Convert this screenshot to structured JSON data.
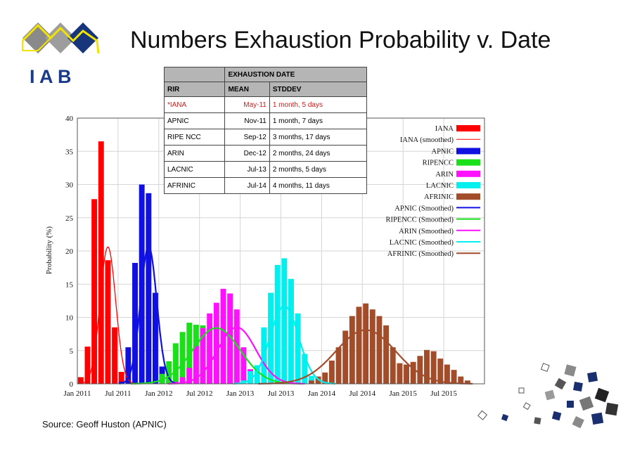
{
  "slide": {
    "title": "Numbers Exhaustion Probability v. Date",
    "logo_text": "I A B",
    "source": "Source: Geoff Huston (APNIC)"
  },
  "table": {
    "group_header": "EXHAUSTION DATE",
    "columns": [
      "RIR",
      "MEAN",
      "STDDEV"
    ],
    "rows": [
      {
        "rir": "*IANA",
        "mean": "May-11",
        "stddev": "1 month, 5 days"
      },
      {
        "rir": "APNIC",
        "mean": "Nov-11",
        "stddev": "1 month, 7 days"
      },
      {
        "rir": "RIPE NCC",
        "mean": "Sep-12",
        "stddev": "3 months, 17 days"
      },
      {
        "rir": "ARIN",
        "mean": "Dec-12",
        "stddev": "2 months, 24 days"
      },
      {
        "rir": "LACNIC",
        "mean": "Jul-13",
        "stddev": "2 months, 5 days"
      },
      {
        "rir": "AFRINIC",
        "mean": "Jul-14",
        "stddev": "4 months, 11 days"
      }
    ],
    "highlight_color": "#d21a1a"
  },
  "chart_data": {
    "type": "bar",
    "ylabel": "Probability (%)",
    "xlabel": "",
    "ylim": [
      0,
      40
    ],
    "yticks": [
      0,
      5,
      10,
      15,
      20,
      25,
      30,
      35,
      40
    ],
    "xlim": [
      "2011-01",
      "2016-01"
    ],
    "xticks": [
      "Jan 2011",
      "Jul 2011",
      "Jan 2012",
      "Jul 2012",
      "Jan 2013",
      "Jul 2013",
      "Jan 2014",
      "Jul 2014",
      "Jan 2015",
      "Jul 2015"
    ],
    "grid": true,
    "legend_position": "top-right",
    "bar_series": [
      {
        "name": "IANA",
        "color": "#ff0000",
        "start": "2011-01",
        "values": [
          1.0,
          5.6,
          27.8,
          36.5,
          18.6,
          8.5,
          1.8
        ]
      },
      {
        "name": "APNIC",
        "color": "#1010e0",
        "start": "2011-07",
        "values": [
          0.3,
          5.5,
          18.2,
          30.0,
          28.7,
          13.7,
          2.6,
          0.5
        ]
      },
      {
        "name": "RIPENCC",
        "color": "#19e019",
        "start": "2012-01",
        "values": [
          1.5,
          3.4,
          6.1,
          7.8,
          9.2,
          8.9,
          8.8,
          8.5,
          8.4,
          7.3,
          5.2,
          3.4,
          2.3,
          1.1
        ]
      },
      {
        "name": "ARIN",
        "color": "#ff10ff",
        "start": "2012-03",
        "values": [
          0.3,
          1.0,
          2.4,
          5.7,
          8.4,
          10.6,
          12.2,
          14.3,
          13.6,
          11.2,
          5.5,
          2.2,
          0.6
        ]
      },
      {
        "name": "LACNIC",
        "color": "#00f0f0",
        "start": "2013-01",
        "values": [
          0.5,
          1.9,
          2.8,
          8.5,
          13.7,
          17.9,
          18.9,
          15.8,
          10.6,
          4.5,
          1.2
        ]
      },
      {
        "name": "AFRINIC",
        "color": "#a34c2a",
        "start": "2013-11",
        "values": [
          0.5,
          1.1,
          1.7,
          3.5,
          5.5,
          8.0,
          10.2,
          11.6,
          12.1,
          11.2,
          10.2,
          8.8,
          5.5,
          3.1,
          2.9,
          3.3,
          4.2,
          5.1,
          4.9,
          3.8,
          2.9,
          2.1,
          1.1,
          0.5
        ]
      }
    ],
    "smoothed_series": [
      {
        "name": "IANA (smoothed)",
        "color": "#ff0000",
        "center": "2011-05",
        "peak": 20.6,
        "sigma_months": 1.15
      },
      {
        "name": "APNIC (Smoothed)",
        "color": "#1010e0",
        "center": "2011-11",
        "peak": 20.7,
        "sigma_months": 1.2
      },
      {
        "name": "RIPENCC (Smoothed)",
        "color": "#19e019",
        "center": "2012-09",
        "peak": 8.4,
        "sigma_months": 3.5
      },
      {
        "name": "ARIN (Smoothed)",
        "color": "#ff10ff",
        "center": "2012-12",
        "peak": 8.5,
        "sigma_months": 2.8
      },
      {
        "name": "LACNIC (Smoothed)",
        "color": "#00f0f0",
        "center": "2013-07",
        "peak": 11.7,
        "sigma_months": 2.1
      },
      {
        "name": "AFRINIC (Smoothed)",
        "color": "#a34c2a",
        "center": "2014-07",
        "peak": 8.1,
        "sigma_months": 4.4
      }
    ],
    "legend": [
      {
        "label": "IANA",
        "kind": "bar",
        "color": "#ff0000"
      },
      {
        "label": "IANA (smoothed)",
        "kind": "thin",
        "color": "#ff0000"
      },
      {
        "label": "APNIC",
        "kind": "bar",
        "color": "#1010e0"
      },
      {
        "label": "RIPENCC",
        "kind": "bar",
        "color": "#19e019"
      },
      {
        "label": "ARIN",
        "kind": "bar",
        "color": "#ff10ff"
      },
      {
        "label": "LACNIC",
        "kind": "bar",
        "color": "#00f0f0"
      },
      {
        "label": "AFRINIC",
        "kind": "bar",
        "color": "#a34c2a"
      },
      {
        "label": "APNIC (Smoothed)",
        "kind": "line",
        "color": "#1010e0"
      },
      {
        "label": "RIPENCC (Smoothed)",
        "kind": "line",
        "color": "#19e019"
      },
      {
        "label": "ARIN (Smoothed)",
        "kind": "line",
        "color": "#ff10ff"
      },
      {
        "label": "LACNIC (Smoothed)",
        "kind": "line",
        "color": "#00f0f0"
      },
      {
        "label": "AFRINIC (Smoothed)",
        "kind": "line",
        "color": "#a34c2a"
      }
    ]
  }
}
